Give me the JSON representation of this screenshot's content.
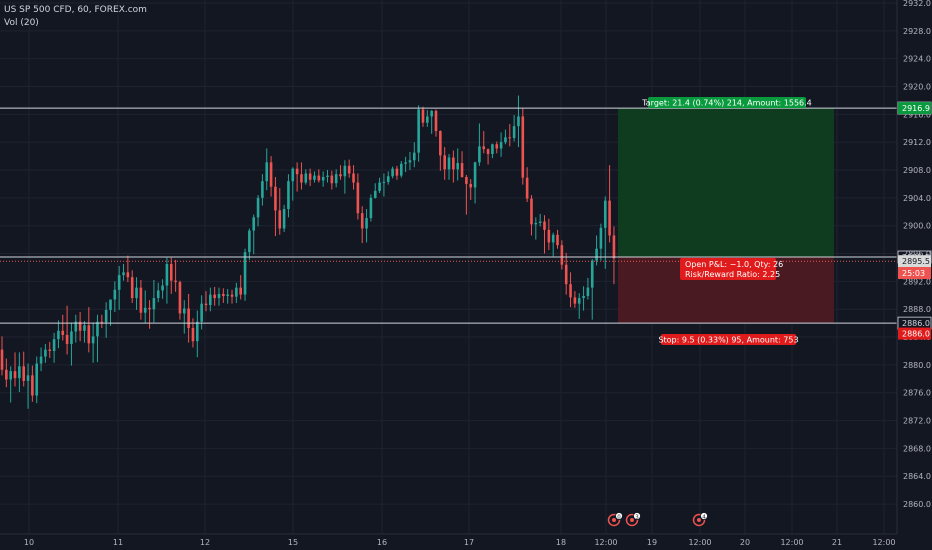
{
  "legend": {
    "symbol_line": "US SP 500 CFD, 60, FOREX.com",
    "volume_line": "Vol (20)"
  },
  "colors": {
    "background": "#131722",
    "grid": "#1f2330",
    "text": "#b2b5be",
    "up": "#26a69a",
    "down": "#ef5350",
    "profit_zone": "#0f3b1f",
    "loss_zone": "#4a1a22",
    "target_label": "#0a9a3e",
    "stop_label": "#e01b1b",
    "current_price": "#ef5350"
  },
  "chart_data": {
    "type": "candlestick",
    "y_axis": {
      "min": 2858,
      "max": 2932,
      "ticks": [
        "2932.0",
        "2928.0",
        "2924.0",
        "2920.0",
        "2916.0",
        "2912.0",
        "2908.0",
        "2904.0",
        "2900.0",
        "2896.0",
        "2892.0",
        "2888.0",
        "2884.0",
        "2880.0",
        "2876.0",
        "2872.0",
        "2868.0",
        "2864.0",
        "2860.0"
      ]
    },
    "x_axis": {
      "ticks": [
        "10",
        "11",
        "12",
        "15",
        "16",
        "17",
        "18",
        "12:00",
        "19",
        "12:00",
        "20",
        "12:00",
        "21",
        "12:00"
      ]
    },
    "price_lines": [
      {
        "label": "2916.9",
        "value": 2916.9
      },
      {
        "label": "2895.5",
        "value": 2895.5
      },
      {
        "label": "2886.0",
        "value": 2886.0
      }
    ],
    "price_badges": [
      {
        "label": "2916.9",
        "value": 2916.9,
        "type": "target"
      },
      {
        "label": "2895.5",
        "value": 2894.9,
        "type": "current"
      },
      {
        "label": "25:03",
        "value": 2893.2,
        "type": "timer"
      },
      {
        "label": "2886.0",
        "value": 2884.5,
        "type": "stop"
      }
    ],
    "position": {
      "entry": 2895.5,
      "target": 2916.9,
      "stop": 2886.0,
      "target_label": "Target: 21.4 (0.74%) 214, Amount: 1556.4",
      "stop_label": "Stop: 9.5 (0.33%) 95, Amount: 753",
      "pnl_label": "Open P&L: −1.0, Qty: 26",
      "rr_label": "Risk/Reward Ratio: 2.25"
    },
    "events": [
      "0",
      "3",
      "4"
    ],
    "candles": [
      [
        2882.2,
        2884.1,
        2878.5,
        2879.3
      ],
      [
        2879.3,
        2880.9,
        2876.8,
        2877.9
      ],
      [
        2877.9,
        2879.8,
        2874.6,
        2879.1
      ],
      [
        2879.1,
        2881.8,
        2876.9,
        2878.1
      ],
      [
        2878.1,
        2881.8,
        2876.1,
        2879.8
      ],
      [
        2879.8,
        2881.9,
        2876.9,
        2877.7
      ],
      [
        2877.7,
        2880.2,
        2873.7,
        2878.5
      ],
      [
        2878.5,
        2879.9,
        2874.7,
        2875.6
      ],
      [
        2875.6,
        2881.2,
        2874.5,
        2880.2
      ],
      [
        2880.2,
        2882.5,
        2879.1,
        2881.2
      ],
      [
        2881.2,
        2883.0,
        2880.3,
        2882.2
      ],
      [
        2882.2,
        2883.3,
        2881.0,
        2882.0
      ],
      [
        2882.0,
        2884.6,
        2880.3,
        2883.7
      ],
      [
        2883.7,
        2886.4,
        2882.4,
        2884.9
      ],
      [
        2884.9,
        2887.2,
        2883.5,
        2884.3
      ],
      [
        2884.3,
        2888.5,
        2881.5,
        2883.0
      ],
      [
        2883.0,
        2886.1,
        2879.9,
        2884.8
      ],
      [
        2884.8,
        2887.2,
        2883.2,
        2886.2
      ],
      [
        2886.2,
        2887.6,
        2883.4,
        2884.9
      ],
      [
        2884.9,
        2886.3,
        2883.2,
        2885.7
      ],
      [
        2885.7,
        2888.3,
        2881.8,
        2883.1
      ],
      [
        2883.1,
        2886.1,
        2880.3,
        2884.1
      ],
      [
        2884.1,
        2887.2,
        2880.4,
        2886.2
      ],
      [
        2886.2,
        2887.2,
        2885.3,
        2886.1
      ],
      [
        2886.1,
        2889.0,
        2883.9,
        2887.9
      ],
      [
        2887.9,
        2889.4,
        2885.6,
        2889.4
      ],
      [
        2889.4,
        2892.0,
        2887.6,
        2890.8
      ],
      [
        2890.8,
        2894.2,
        2887.9,
        2892.9
      ],
      [
        2892.9,
        2894.5,
        2892.1,
        2893.3
      ],
      [
        2893.3,
        2895.7,
        2891.9,
        2892.6
      ],
      [
        2892.6,
        2893.6,
        2888.9,
        2889.6
      ],
      [
        2889.6,
        2892.6,
        2887.9,
        2891.1
      ],
      [
        2891.1,
        2892.2,
        2886.5,
        2887.5
      ],
      [
        2887.5,
        2890.7,
        2886.0,
        2888.2
      ],
      [
        2888.2,
        2889.3,
        2885.2,
        2888.0
      ],
      [
        2888.0,
        2892.2,
        2886.1,
        2889.6
      ],
      [
        2889.6,
        2891.8,
        2889.0,
        2890.7
      ],
      [
        2890.7,
        2892.3,
        2889.5,
        2891.4
      ],
      [
        2891.4,
        2895.4,
        2888.8,
        2894.5
      ],
      [
        2894.5,
        2895.4,
        2890.2,
        2892.1
      ],
      [
        2892.1,
        2895.1,
        2890.5,
        2891.9
      ],
      [
        2891.9,
        2892.1,
        2886.5,
        2887.4
      ],
      [
        2887.4,
        2889.3,
        2884.5,
        2888.1
      ],
      [
        2888.1,
        2890.2,
        2883.2,
        2885.3
      ],
      [
        2885.3,
        2886.7,
        2882.5,
        2883.4
      ],
      [
        2883.4,
        2887.8,
        2881.1,
        2886.2
      ],
      [
        2886.2,
        2890.0,
        2885.1,
        2888.8
      ],
      [
        2888.8,
        2890.6,
        2887.7,
        2888.6
      ],
      [
        2888.6,
        2891.1,
        2887.7,
        2890.1
      ],
      [
        2890.1,
        2891.2,
        2888.5,
        2889.6
      ],
      [
        2889.6,
        2891.1,
        2888.5,
        2890.2
      ],
      [
        2890.2,
        2891.0,
        2888.9,
        2889.9
      ],
      [
        2889.9,
        2890.9,
        2888.8,
        2890.1
      ],
      [
        2890.1,
        2890.8,
        2888.8,
        2889.8
      ],
      [
        2889.8,
        2891.8,
        2888.9,
        2891.1
      ],
      [
        2891.1,
        2892.9,
        2889.4,
        2890.1
      ],
      [
        2890.1,
        2896.7,
        2889.2,
        2896.2
      ],
      [
        2896.2,
        2899.6,
        2895.1,
        2899.3
      ],
      [
        2899.3,
        2901.6,
        2895.9,
        2901.2
      ],
      [
        2901.2,
        2904.4,
        2899.9,
        2904.0
      ],
      [
        2904.0,
        2907.4,
        2902.9,
        2906.4
      ],
      [
        2906.4,
        2911.1,
        2905.1,
        2909.1
      ],
      [
        2909.1,
        2910.0,
        2904.2,
        2905.6
      ],
      [
        2905.6,
        2907.0,
        2898.5,
        2902.2
      ],
      [
        2902.2,
        2905.4,
        2898.7,
        2899.6
      ],
      [
        2899.6,
        2903.0,
        2899.1,
        2902.4
      ],
      [
        2902.4,
        2907.4,
        2901.2,
        2906.4
      ],
      [
        2906.4,
        2908.4,
        2903.6,
        2908.2
      ],
      [
        2908.2,
        2909.1,
        2904.9,
        2907.4
      ],
      [
        2907.4,
        2909.1,
        2905.2,
        2906.2
      ],
      [
        2906.2,
        2908.1,
        2905.9,
        2907.5
      ],
      [
        2907.5,
        2908.2,
        2905.7,
        2906.6
      ],
      [
        2906.6,
        2907.8,
        2906.2,
        2907.2
      ],
      [
        2907.2,
        2908.1,
        2906.2,
        2906.5
      ],
      [
        2906.5,
        2907.8,
        2905.6,
        2907.0
      ],
      [
        2907.0,
        2908.0,
        2906.2,
        2907.2
      ],
      [
        2907.2,
        2907.9,
        2905.2,
        2906.1
      ],
      [
        2906.1,
        2908.1,
        2905.5,
        2907.4
      ],
      [
        2907.4,
        2908.7,
        2906.6,
        2907.1
      ],
      [
        2907.1,
        2909.4,
        2904.6,
        2908.6
      ],
      [
        2908.6,
        2909.5,
        2906.9,
        2907.5
      ],
      [
        2907.5,
        2908.7,
        2905.2,
        2906.2
      ],
      [
        2906.2,
        2907.5,
        2900.9,
        2901.8
      ],
      [
        2901.8,
        2902.8,
        2897.5,
        2899.6
      ],
      [
        2899.6,
        2902.4,
        2897.6,
        2901.1
      ],
      [
        2901.1,
        2904.5,
        2900.6,
        2904.0
      ],
      [
        2904.0,
        2906.1,
        2903.9,
        2905.0
      ],
      [
        2905.0,
        2906.9,
        2904.7,
        2906.2
      ],
      [
        2906.2,
        2907.5,
        2904.2,
        2906.3
      ],
      [
        2906.3,
        2907.8,
        2905.9,
        2907.1
      ],
      [
        2907.1,
        2908.5,
        2906.8,
        2908.2
      ],
      [
        2908.2,
        2908.6,
        2906.6,
        2907.2
      ],
      [
        2907.2,
        2909.3,
        2906.9,
        2908.9
      ],
      [
        2908.9,
        2909.9,
        2907.7,
        2909.1
      ],
      [
        2909.1,
        2910.6,
        2908.0,
        2909.4
      ],
      [
        2909.4,
        2912.0,
        2908.4,
        2910.5
      ],
      [
        2910.5,
        2917.3,
        2909.2,
        2916.7
      ],
      [
        2916.7,
        2917.1,
        2914.2,
        2914.8
      ],
      [
        2914.8,
        2916.6,
        2914.2,
        2915.7
      ],
      [
        2915.7,
        2916.6,
        2913.2,
        2916.5
      ],
      [
        2916.5,
        2916.7,
        2912.8,
        2913.6
      ],
      [
        2913.6,
        2913.7,
        2907.9,
        2910.1
      ],
      [
        2910.1,
        2911.3,
        2906.6,
        2908.1
      ],
      [
        2908.1,
        2910.3,
        2906.6,
        2909.8
      ],
      [
        2909.8,
        2910.8,
        2906.2,
        2908.1
      ],
      [
        2908.1,
        2911.1,
        2906.5,
        2909.0
      ],
      [
        2909.0,
        2910.7,
        2906.9,
        2907.0
      ],
      [
        2907.0,
        2907.3,
        2901.6,
        2906.0
      ],
      [
        2906.0,
        2906.7,
        2903.7,
        2905.5
      ],
      [
        2905.5,
        2909.2,
        2903.2,
        2909.1
      ],
      [
        2909.1,
        2914.7,
        2908.6,
        2911.4
      ],
      [
        2911.4,
        2913.6,
        2910.4,
        2911.0
      ],
      [
        2911.0,
        2911.1,
        2908.8,
        2910.3
      ],
      [
        2910.3,
        2911.8,
        2909.7,
        2911.7
      ],
      [
        2911.7,
        2912.1,
        2910.4,
        2911.1
      ],
      [
        2911.1,
        2913.4,
        2909.9,
        2912.0
      ],
      [
        2912.0,
        2913.8,
        2911.7,
        2912.7
      ],
      [
        2912.7,
        2914.6,
        2911.4,
        2912.6
      ],
      [
        2912.6,
        2915.9,
        2912.1,
        2914.3
      ],
      [
        2914.3,
        2918.7,
        2911.3,
        2915.7
      ],
      [
        2915.7,
        2916.9,
        2905.9,
        2906.9
      ],
      [
        2906.9,
        2908.4,
        2903.4,
        2903.9
      ],
      [
        2903.9,
        2904.4,
        2898.6,
        2900.2
      ],
      [
        2900.2,
        2901.2,
        2898.0,
        2900.4
      ],
      [
        2900.4,
        2901.7,
        2899.9,
        2900.6
      ],
      [
        2900.6,
        2901.5,
        2896.0,
        2899.4
      ],
      [
        2899.4,
        2901.0,
        2896.5,
        2897.6
      ],
      [
        2897.6,
        2899.0,
        2895.6,
        2898.7
      ],
      [
        2898.7,
        2899.4,
        2896.7,
        2897.2
      ],
      [
        2897.2,
        2897.9,
        2893.7,
        2894.4
      ],
      [
        2894.4,
        2896.1,
        2890.1,
        2891.6
      ],
      [
        2891.6,
        2893.3,
        2888.3,
        2889.7
      ],
      [
        2889.7,
        2890.6,
        2888.2,
        2888.8
      ],
      [
        2888.8,
        2890.3,
        2886.6,
        2889.6
      ],
      [
        2889.6,
        2891.3,
        2887.8,
        2889.9
      ],
      [
        2889.9,
        2892.5,
        2889.4,
        2891.1
      ],
      [
        2891.1,
        2895.2,
        2886.5,
        2895.0
      ],
      [
        2895.0,
        2898.6,
        2894.3,
        2896.7
      ],
      [
        2896.7,
        2900.3,
        2895.0,
        2899.7
      ],
      [
        2899.7,
        2904.2,
        2893.8,
        2903.6
      ],
      [
        2903.6,
        2908.7,
        2897.6,
        2898.6
      ],
      [
        2898.6,
        2899.9,
        2891.6,
        2895.3
      ]
    ]
  }
}
